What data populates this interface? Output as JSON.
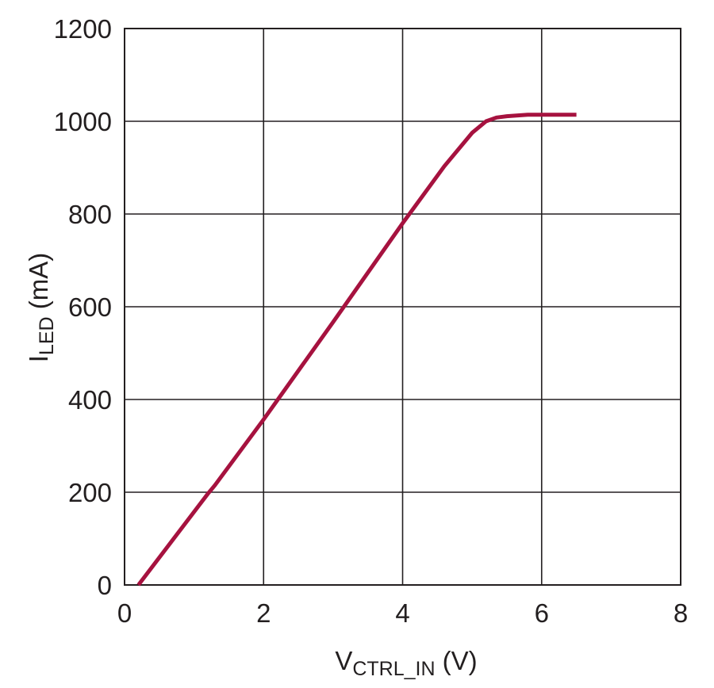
{
  "chart_data": {
    "type": "line",
    "title": "",
    "xlabel": {
      "main": "V",
      "subscript": "CTRL_IN",
      "unit": " (V)"
    },
    "ylabel": {
      "main": "I",
      "subscript": "LED",
      "unit": " (mA)"
    },
    "xlim": [
      0,
      8
    ],
    "ylim": [
      0,
      1200
    ],
    "xticks": [
      0,
      2,
      4,
      6,
      8
    ],
    "yticks": [
      0,
      200,
      400,
      600,
      800,
      1000,
      1200
    ],
    "grid": true,
    "legend": "none",
    "series": [
      {
        "color": "#a6123f",
        "x": [
          0.2,
          1.2,
          1.3,
          2.0,
          3.0,
          4.0,
          4.6,
          5.0,
          5.2,
          5.35,
          5.5,
          5.8,
          6.5
        ],
        "y": [
          0,
          197,
          215,
          357,
          567,
          780,
          903,
          975,
          1000,
          1008,
          1011,
          1014,
          1014
        ]
      }
    ]
  }
}
